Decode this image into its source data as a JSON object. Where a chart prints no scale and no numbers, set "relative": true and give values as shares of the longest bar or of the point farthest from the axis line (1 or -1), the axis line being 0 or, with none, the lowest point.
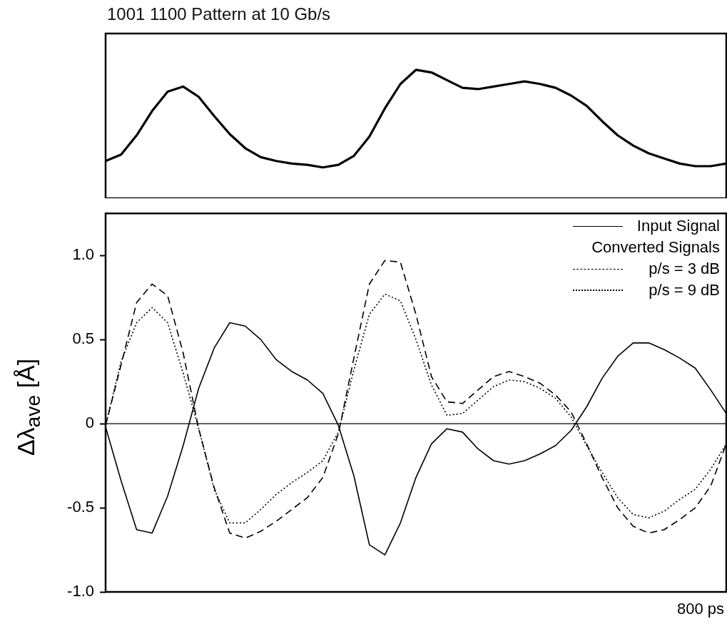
{
  "chart_data": [
    {
      "type": "line",
      "title": "1001 1100 Pattern at 10 Gb/s",
      "relative": true,
      "tick_labels": false,
      "marker": "none",
      "categories": [
        null,
        null,
        null,
        null,
        null,
        null,
        null,
        null,
        null,
        null,
        null,
        null,
        null,
        null,
        null,
        null,
        null,
        null,
        null,
        null,
        null,
        null,
        null,
        null,
        null,
        null,
        null,
        null,
        null,
        null,
        null,
        null,
        null,
        null,
        null,
        null,
        null,
        null,
        null,
        null,
        null
      ],
      "series": [
        {
          "color": "#000000",
          "line_style": "solid",
          "values": [
            0.29,
            0.34,
            0.49,
            0.68,
            0.83,
            0.87,
            0.79,
            0.64,
            0.5,
            0.39,
            0.32,
            0.29,
            0.27,
            0.26,
            0.24,
            0.26,
            0.33,
            0.48,
            0.7,
            0.89,
            1,
            0.98,
            0.92,
            0.86,
            0.85,
            0.87,
            0.89,
            0.91,
            0.89,
            0.86,
            0.8,
            0.72,
            0.6,
            0.49,
            0.41,
            0.35,
            0.31,
            0.27,
            0.25,
            0.25,
            0.27
          ]
        }
      ]
    },
    {
      "type": "line",
      "ylabel": "Δλ$_{ave}$  [Å]",
      "xlabel": "800 ps",
      "legend_title": "Converted Signals",
      "legend": "top right",
      "tick_labels": "y",
      "marker": "none",
      "categories": [
        null,
        null,
        null,
        null,
        null,
        null,
        null,
        null,
        null,
        null,
        null,
        null,
        null,
        null,
        null,
        null,
        null,
        null,
        null,
        null,
        null,
        null,
        null,
        null,
        null,
        null,
        null,
        null,
        null,
        null,
        null,
        null,
        null,
        null,
        null,
        null,
        null,
        null,
        null,
        null,
        null
      ],
      "ylim": [
        -1.0,
        1.25
      ],
      "yticks": [
        {
          "value": -1,
          "label": "-1.0"
        },
        {
          "value": -0.5,
          "label": "-0.5"
        },
        0,
        {
          "value": 0.5,
          "label": "0.5"
        },
        {
          "value": 1,
          "label": "1.0"
        }
      ],
      "ref_lines": [
        {
          "axis": "y",
          "value": 0,
          "color": "#000000"
        }
      ],
      "series": [
        {
          "name": "Input Signal",
          "color": "#000000",
          "line_style": "solid",
          "values": [
            -0.02,
            -0.34,
            -0.63,
            -0.65,
            -0.43,
            -0.13,
            0.21,
            0.45,
            0.6,
            0.58,
            0.5,
            0.38,
            0.31,
            0.26,
            0.18,
            -0.01,
            -0.31,
            -0.72,
            -0.78,
            -0.59,
            -0.32,
            -0.12,
            -0.03,
            -0.05,
            -0.15,
            -0.22,
            -0.24,
            -0.22,
            -0.18,
            -0.13,
            -0.04,
            0.1,
            0.27,
            0.4,
            0.48,
            0.48,
            0.44,
            0.39,
            0.33,
            0.2,
            0.06
          ]
        },
        {
          "name": "p/s = 3 dB",
          "color": "#000000",
          "line_style": "dashed",
          "values": [
            -0.01,
            0.35,
            0.72,
            0.83,
            0.76,
            0.42,
            -0.03,
            -0.38,
            -0.65,
            -0.68,
            -0.64,
            -0.58,
            -0.51,
            -0.44,
            -0.32,
            -0.06,
            0.39,
            0.83,
            0.97,
            0.96,
            0.65,
            0.28,
            0.13,
            0.12,
            0.2,
            0.28,
            0.31,
            0.28,
            0.24,
            0.17,
            0.07,
            -0.12,
            -0.32,
            -0.5,
            -0.61,
            -0.65,
            -0.63,
            -0.57,
            -0.5,
            -0.37,
            -0.12
          ]
        },
        {
          "name": "p/s = 9 dB",
          "color": "#000000",
          "line_style": "dotted",
          "values": [
            -0.01,
            0.37,
            0.6,
            0.69,
            0.6,
            0.3,
            -0.03,
            -0.39,
            -0.59,
            -0.59,
            -0.51,
            -0.42,
            -0.35,
            -0.29,
            -0.22,
            -0.05,
            0.32,
            0.65,
            0.77,
            0.73,
            0.5,
            0.23,
            0.05,
            0.06,
            0.14,
            0.22,
            0.26,
            0.25,
            0.21,
            0.15,
            0.04,
            -0.13,
            -0.29,
            -0.44,
            -0.54,
            -0.56,
            -0.52,
            -0.45,
            -0.39,
            -0.27,
            -0.12
          ]
        }
      ]
    }
  ]
}
